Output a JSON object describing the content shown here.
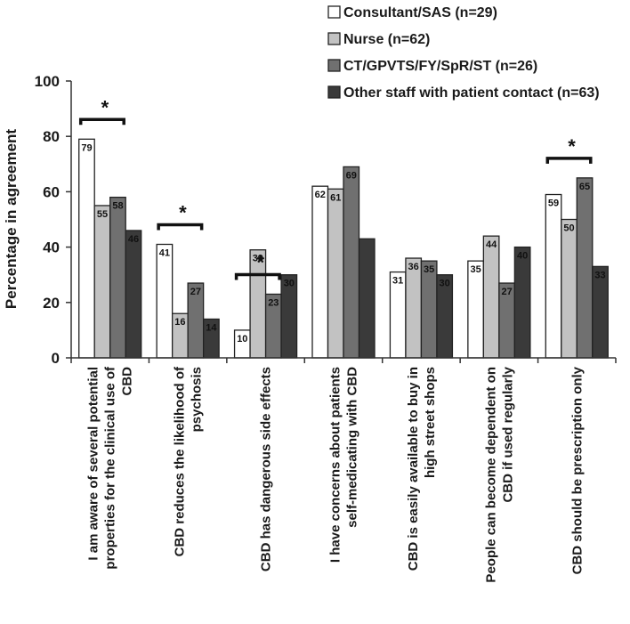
{
  "chart_data": {
    "type": "bar",
    "title": "",
    "xlabel": "",
    "ylabel": "Percentage in agreement",
    "ylim": [
      0,
      100
    ],
    "yticks": [
      0,
      20,
      40,
      60,
      80,
      100
    ],
    "grid": false,
    "legend_position": "top-right",
    "categories": [
      [
        "I am aware of several potential",
        "properties for the clinical use of",
        "CBD"
      ],
      [
        "CBD reduces the likelihood of",
        "psychosis"
      ],
      [
        "CBD has dangerous side effects"
      ],
      [
        "I have concerns about patients",
        "self-medicating with CBD"
      ],
      [
        "CBD is easily available to buy in",
        "high street shops"
      ],
      [
        "People can become dependent on",
        "CBD if used regularly"
      ],
      [
        "CBD should be prescription only"
      ]
    ],
    "series": [
      {
        "name": "Consultant/SAS (n=29)",
        "color": "#ffffff",
        "values": [
          79,
          41,
          10,
          62,
          31,
          35,
          59
        ],
        "labels": [
          "79",
          "41",
          "10",
          "62",
          "31",
          "35",
          "59"
        ]
      },
      {
        "name": "Nurse (n=62)",
        "color": "#c2c2c2",
        "values": [
          55,
          16,
          39,
          61,
          36,
          44,
          50
        ],
        "labels": [
          "55",
          "16",
          "39",
          "61",
          "36",
          "44",
          "50"
        ]
      },
      {
        "name": "CT/GPVTS/FY/SpR/ST (n=26)",
        "color": "#707070",
        "values": [
          58,
          27,
          23,
          69,
          35,
          27,
          65
        ],
        "labels": [
          "58",
          "27",
          "23",
          "69",
          "35",
          "27",
          "65"
        ]
      },
      {
        "name": "Other staff with patient contact (n=63)",
        "color": "#3a3a3a",
        "values": [
          46,
          14,
          30,
          43,
          30,
          40,
          33
        ],
        "labels": [
          "46",
          "14",
          "30",
          "",
          "30",
          "40",
          "33"
        ]
      }
    ],
    "significance": [
      {
        "category": 0,
        "label": "*"
      },
      {
        "category": 1,
        "label": "*"
      },
      {
        "category": 2,
        "label": "*"
      },
      {
        "category": 6,
        "label": "*"
      }
    ]
  }
}
